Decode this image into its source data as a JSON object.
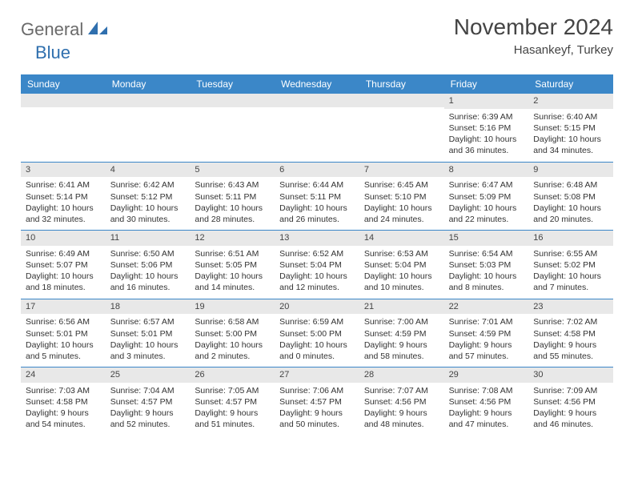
{
  "brand": {
    "text1": "General",
    "text2": "Blue"
  },
  "title": "November 2024",
  "location": "Hasankeyf, Turkey",
  "colors": {
    "header_bg": "#3b87c8",
    "header_text": "#ffffff",
    "daynum_bg": "#e8e8e8",
    "rule": "#3b87c8",
    "text": "#333333",
    "brand_gray": "#6a6a6a",
    "brand_blue": "#2f6fae"
  },
  "typography": {
    "title_fontsize": 28,
    "location_fontsize": 15,
    "header_fontsize": 12,
    "body_fontsize": 10.5
  },
  "dayNames": [
    "Sunday",
    "Monday",
    "Tuesday",
    "Wednesday",
    "Thursday",
    "Friday",
    "Saturday"
  ],
  "weeks": [
    [
      {
        "n": "",
        "sr": "",
        "ss": "",
        "dl": ""
      },
      {
        "n": "",
        "sr": "",
        "ss": "",
        "dl": ""
      },
      {
        "n": "",
        "sr": "",
        "ss": "",
        "dl": ""
      },
      {
        "n": "",
        "sr": "",
        "ss": "",
        "dl": ""
      },
      {
        "n": "",
        "sr": "",
        "ss": "",
        "dl": ""
      },
      {
        "n": "1",
        "sr": "Sunrise: 6:39 AM",
        "ss": "Sunset: 5:16 PM",
        "dl": "Daylight: 10 hours and 36 minutes."
      },
      {
        "n": "2",
        "sr": "Sunrise: 6:40 AM",
        "ss": "Sunset: 5:15 PM",
        "dl": "Daylight: 10 hours and 34 minutes."
      }
    ],
    [
      {
        "n": "3",
        "sr": "Sunrise: 6:41 AM",
        "ss": "Sunset: 5:14 PM",
        "dl": "Daylight: 10 hours and 32 minutes."
      },
      {
        "n": "4",
        "sr": "Sunrise: 6:42 AM",
        "ss": "Sunset: 5:12 PM",
        "dl": "Daylight: 10 hours and 30 minutes."
      },
      {
        "n": "5",
        "sr": "Sunrise: 6:43 AM",
        "ss": "Sunset: 5:11 PM",
        "dl": "Daylight: 10 hours and 28 minutes."
      },
      {
        "n": "6",
        "sr": "Sunrise: 6:44 AM",
        "ss": "Sunset: 5:11 PM",
        "dl": "Daylight: 10 hours and 26 minutes."
      },
      {
        "n": "7",
        "sr": "Sunrise: 6:45 AM",
        "ss": "Sunset: 5:10 PM",
        "dl": "Daylight: 10 hours and 24 minutes."
      },
      {
        "n": "8",
        "sr": "Sunrise: 6:47 AM",
        "ss": "Sunset: 5:09 PM",
        "dl": "Daylight: 10 hours and 22 minutes."
      },
      {
        "n": "9",
        "sr": "Sunrise: 6:48 AM",
        "ss": "Sunset: 5:08 PM",
        "dl": "Daylight: 10 hours and 20 minutes."
      }
    ],
    [
      {
        "n": "10",
        "sr": "Sunrise: 6:49 AM",
        "ss": "Sunset: 5:07 PM",
        "dl": "Daylight: 10 hours and 18 minutes."
      },
      {
        "n": "11",
        "sr": "Sunrise: 6:50 AM",
        "ss": "Sunset: 5:06 PM",
        "dl": "Daylight: 10 hours and 16 minutes."
      },
      {
        "n": "12",
        "sr": "Sunrise: 6:51 AM",
        "ss": "Sunset: 5:05 PM",
        "dl": "Daylight: 10 hours and 14 minutes."
      },
      {
        "n": "13",
        "sr": "Sunrise: 6:52 AM",
        "ss": "Sunset: 5:04 PM",
        "dl": "Daylight: 10 hours and 12 minutes."
      },
      {
        "n": "14",
        "sr": "Sunrise: 6:53 AM",
        "ss": "Sunset: 5:04 PM",
        "dl": "Daylight: 10 hours and 10 minutes."
      },
      {
        "n": "15",
        "sr": "Sunrise: 6:54 AM",
        "ss": "Sunset: 5:03 PM",
        "dl": "Daylight: 10 hours and 8 minutes."
      },
      {
        "n": "16",
        "sr": "Sunrise: 6:55 AM",
        "ss": "Sunset: 5:02 PM",
        "dl": "Daylight: 10 hours and 7 minutes."
      }
    ],
    [
      {
        "n": "17",
        "sr": "Sunrise: 6:56 AM",
        "ss": "Sunset: 5:01 PM",
        "dl": "Daylight: 10 hours and 5 minutes."
      },
      {
        "n": "18",
        "sr": "Sunrise: 6:57 AM",
        "ss": "Sunset: 5:01 PM",
        "dl": "Daylight: 10 hours and 3 minutes."
      },
      {
        "n": "19",
        "sr": "Sunrise: 6:58 AM",
        "ss": "Sunset: 5:00 PM",
        "dl": "Daylight: 10 hours and 2 minutes."
      },
      {
        "n": "20",
        "sr": "Sunrise: 6:59 AM",
        "ss": "Sunset: 5:00 PM",
        "dl": "Daylight: 10 hours and 0 minutes."
      },
      {
        "n": "21",
        "sr": "Sunrise: 7:00 AM",
        "ss": "Sunset: 4:59 PM",
        "dl": "Daylight: 9 hours and 58 minutes."
      },
      {
        "n": "22",
        "sr": "Sunrise: 7:01 AM",
        "ss": "Sunset: 4:59 PM",
        "dl": "Daylight: 9 hours and 57 minutes."
      },
      {
        "n": "23",
        "sr": "Sunrise: 7:02 AM",
        "ss": "Sunset: 4:58 PM",
        "dl": "Daylight: 9 hours and 55 minutes."
      }
    ],
    [
      {
        "n": "24",
        "sr": "Sunrise: 7:03 AM",
        "ss": "Sunset: 4:58 PM",
        "dl": "Daylight: 9 hours and 54 minutes."
      },
      {
        "n": "25",
        "sr": "Sunrise: 7:04 AM",
        "ss": "Sunset: 4:57 PM",
        "dl": "Daylight: 9 hours and 52 minutes."
      },
      {
        "n": "26",
        "sr": "Sunrise: 7:05 AM",
        "ss": "Sunset: 4:57 PM",
        "dl": "Daylight: 9 hours and 51 minutes."
      },
      {
        "n": "27",
        "sr": "Sunrise: 7:06 AM",
        "ss": "Sunset: 4:57 PM",
        "dl": "Daylight: 9 hours and 50 minutes."
      },
      {
        "n": "28",
        "sr": "Sunrise: 7:07 AM",
        "ss": "Sunset: 4:56 PM",
        "dl": "Daylight: 9 hours and 48 minutes."
      },
      {
        "n": "29",
        "sr": "Sunrise: 7:08 AM",
        "ss": "Sunset: 4:56 PM",
        "dl": "Daylight: 9 hours and 47 minutes."
      },
      {
        "n": "30",
        "sr": "Sunrise: 7:09 AM",
        "ss": "Sunset: 4:56 PM",
        "dl": "Daylight: 9 hours and 46 minutes."
      }
    ]
  ]
}
